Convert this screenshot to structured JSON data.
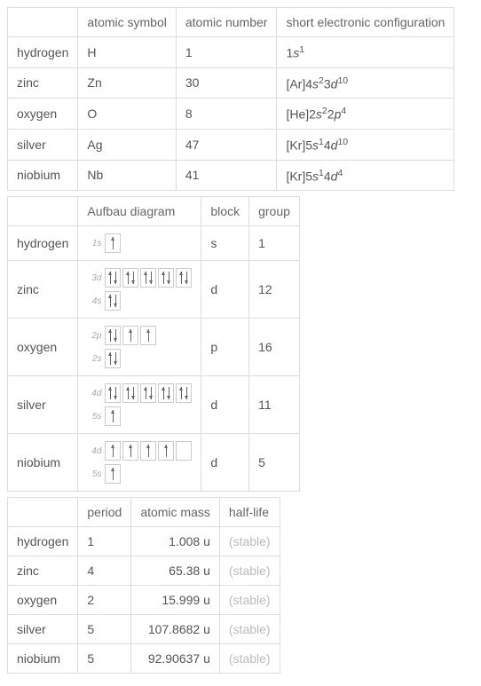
{
  "table1": {
    "headers": [
      "",
      "atomic symbol",
      "atomic number",
      "short electronic configuration"
    ],
    "rows": [
      {
        "name": "hydrogen",
        "symbol": "H",
        "number": "1",
        "econf_pre": "",
        "econf_parts": [
          [
            "1",
            "s",
            "1"
          ]
        ]
      },
      {
        "name": "zinc",
        "symbol": "Zn",
        "number": "30",
        "econf_pre": "[Ar]",
        "econf_parts": [
          [
            "4",
            "s",
            "2"
          ],
          [
            "3",
            "d",
            "10"
          ]
        ]
      },
      {
        "name": "oxygen",
        "symbol": "O",
        "number": "8",
        "econf_pre": "[He]",
        "econf_parts": [
          [
            "2",
            "s",
            "2"
          ],
          [
            "2",
            "p",
            "4"
          ]
        ]
      },
      {
        "name": "silver",
        "symbol": "Ag",
        "number": "47",
        "econf_pre": "[Kr]",
        "econf_parts": [
          [
            "5",
            "s",
            "1"
          ],
          [
            "4",
            "d",
            "10"
          ]
        ]
      },
      {
        "name": "niobium",
        "symbol": "Nb",
        "number": "41",
        "econf_pre": "[Kr]",
        "econf_parts": [
          [
            "5",
            "s",
            "1"
          ],
          [
            "4",
            "d",
            "4"
          ]
        ]
      }
    ]
  },
  "table2": {
    "headers": [
      "",
      "Aufbau diagram",
      "block",
      "group"
    ],
    "rows": [
      {
        "name": "hydrogen",
        "block": "s",
        "group": "1",
        "aufbau": [
          {
            "label": "1s",
            "boxes": [
              [
                "up"
              ]
            ]
          }
        ]
      },
      {
        "name": "zinc",
        "block": "d",
        "group": "12",
        "aufbau": [
          {
            "label": "3d",
            "boxes": [
              [
                "up",
                "down"
              ],
              [
                "up",
                "down"
              ],
              [
                "up",
                "down"
              ],
              [
                "up",
                "down"
              ],
              [
                "up",
                "down"
              ]
            ]
          },
          {
            "label": "4s",
            "boxes": [
              [
                "up",
                "down"
              ]
            ]
          }
        ]
      },
      {
        "name": "oxygen",
        "block": "p",
        "group": "16",
        "aufbau": [
          {
            "label": "2p",
            "boxes": [
              [
                "up",
                "down"
              ],
              [
                "up"
              ],
              [
                "up"
              ]
            ]
          },
          {
            "label": "2s",
            "boxes": [
              [
                "up",
                "down"
              ]
            ]
          }
        ]
      },
      {
        "name": "silver",
        "block": "d",
        "group": "11",
        "aufbau": [
          {
            "label": "4d",
            "boxes": [
              [
                "up",
                "down"
              ],
              [
                "up",
                "down"
              ],
              [
                "up",
                "down"
              ],
              [
                "up",
                "down"
              ],
              [
                "up",
                "down"
              ]
            ]
          },
          {
            "label": "5s",
            "boxes": [
              [
                "up"
              ]
            ]
          }
        ]
      },
      {
        "name": "niobium",
        "block": "d",
        "group": "5",
        "aufbau": [
          {
            "label": "4d",
            "boxes": [
              [
                "up"
              ],
              [
                "up"
              ],
              [
                "up"
              ],
              [
                "up"
              ],
              []
            ]
          },
          {
            "label": "5s",
            "boxes": [
              [
                "up"
              ]
            ]
          }
        ]
      }
    ]
  },
  "table3": {
    "headers": [
      "",
      "period",
      "atomic mass",
      "half-life"
    ],
    "rows": [
      {
        "name": "hydrogen",
        "period": "1",
        "mass": "1.008 u",
        "half": "(stable)"
      },
      {
        "name": "zinc",
        "period": "4",
        "mass": "65.38 u",
        "half": "(stable)"
      },
      {
        "name": "oxygen",
        "period": "2",
        "mass": "15.999 u",
        "half": "(stable)"
      },
      {
        "name": "silver",
        "period": "5",
        "mass": "107.8682 u",
        "half": "(stable)"
      },
      {
        "name": "niobium",
        "period": "5",
        "mass": "92.90637 u",
        "half": "(stable)"
      }
    ]
  },
  "colors": {
    "border": "#dddddd",
    "text": "#555555",
    "stable": "#bbbbbb",
    "arrow": "#666666"
  }
}
